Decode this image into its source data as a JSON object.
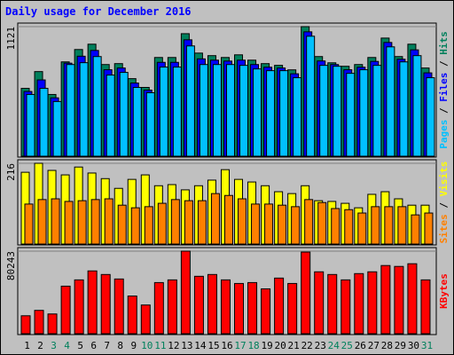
{
  "title": "Daily usage for December 2016",
  "legend_separator": " / ",
  "chart_data": [
    {
      "type": "bar",
      "ylim": [
        0,
        1121
      ],
      "yticks": [
        1121
      ],
      "series": [
        {
          "name": "Hits",
          "color": "#00805c",
          "values": [
            587,
            732,
            534,
            816,
            923,
            969,
            793,
            801,
            671,
            595,
            854,
            854,
            1060,
            892,
            870,
            854,
            877,
            831,
            801,
            786,
            747,
            1121,
            862,
            808,
            778,
            793,
            854,
            1022,
            862,
            969,
            763
          ]
        },
        {
          "name": "Files",
          "color": "#0000ff",
          "values": [
            560,
            660,
            505,
            805,
            865,
            915,
            748,
            763,
            633,
            572,
            812,
            812,
            1007,
            842,
            831,
            823,
            831,
            793,
            770,
            763,
            713,
            1076,
            824,
            793,
            748,
            770,
            820,
            984,
            839,
            920,
            721
          ]
        },
        {
          "name": "Pages",
          "color": "#00c0ff",
          "values": [
            534,
            587,
            473,
            793,
            809,
            862,
            702,
            725,
            595,
            549,
            771,
            771,
            954,
            793,
            793,
            793,
            786,
            755,
            740,
            740,
            679,
            1038,
            786,
            778,
            717,
            748,
            786,
            946,
            816,
            870,
            679
          ]
        }
      ]
    },
    {
      "type": "bar",
      "ylim": [
        0,
        216
      ],
      "yticks": [
        216
      ],
      "series": [
        {
          "name": "Visits",
          "color": "#ffff00",
          "values": [
            192,
            216,
            197,
            185,
            206,
            190,
            175,
            149,
            173,
            185,
            156,
            159,
            145,
            156,
            171,
            199,
            173,
            166,
            156,
            140,
            135,
            156,
            116,
            114,
            109,
            97,
            133,
            140,
            121,
            104,
            104
          ]
        },
        {
          "name": "Sites",
          "color": "#ff8000",
          "values": [
            107,
            119,
            121,
            114,
            116,
            119,
            121,
            104,
            97,
            100,
            109,
            119,
            116,
            116,
            135,
            130,
            121,
            107,
            107,
            104,
            100,
            119,
            111,
            95,
            92,
            83,
            100,
            100,
            100,
            78,
            83
          ]
        }
      ]
    },
    {
      "type": "bar",
      "ylim": [
        0,
        80243
      ],
      "yticks": [
        80243
      ],
      "categories": [
        "1",
        "2",
        "3",
        "4",
        "5",
        "6",
        "7",
        "8",
        "9",
        "10",
        "11",
        "12",
        "13",
        "14",
        "15",
        "16",
        "17",
        "18",
        "19",
        "20",
        "21",
        "22",
        "23",
        "24",
        "25",
        "26",
        "27",
        "28",
        "29",
        "30",
        "31"
      ],
      "category_colors": [
        "#000000",
        "#000000",
        "#00805c",
        "#00805c",
        "#000000",
        "#000000",
        "#000000",
        "#000000",
        "#000000",
        "#00805c",
        "#00805c",
        "#000000",
        "#000000",
        "#000000",
        "#000000",
        "#000000",
        "#00805c",
        "#00805c",
        "#000000",
        "#000000",
        "#000000",
        "#000000",
        "#000000",
        "#00805c",
        "#00805c",
        "#000000",
        "#000000",
        "#000000",
        "#000000",
        "#000000",
        "#00805c"
      ],
      "series": [
        {
          "name": "KBytes",
          "color": "#ff0000",
          "values": [
            17440,
            22672,
            19184,
            46216,
            52320,
            61040,
            57552,
            53192,
            36624,
            27904,
            49704,
            52320,
            80243,
            55808,
            57552,
            52320,
            48832,
            49704,
            43600,
            54064,
            48832,
            79352,
            60168,
            57552,
            52320,
            58424,
            60168,
            66272,
            65400,
            68016,
            52320
          ]
        }
      ]
    }
  ]
}
